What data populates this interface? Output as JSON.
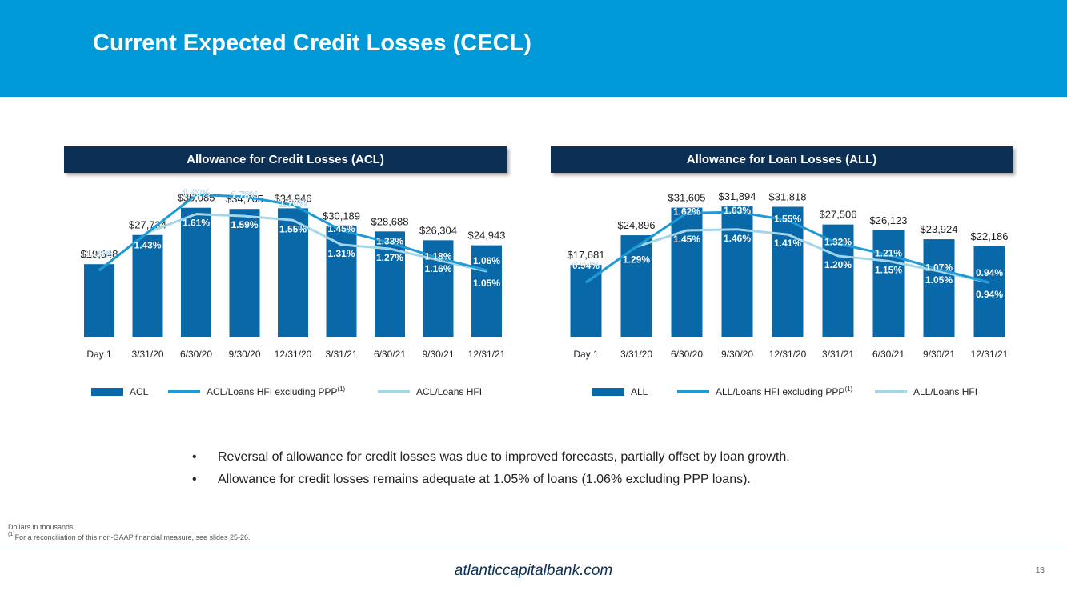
{
  "header": {
    "title": "Current Expected Credit Losses (CECL)"
  },
  "chart_data": [
    {
      "type": "bar",
      "title": "Allowance for Credit Losses (ACL)",
      "categories": [
        "Day 1",
        "3/31/20",
        "6/30/20",
        "9/30/20",
        "12/31/20",
        "3/31/21",
        "6/30/21",
        "9/30/21",
        "12/31/21"
      ],
      "bar_series": {
        "name": "ACL",
        "values": [
          19848,
          27734,
          35085,
          34765,
          34946,
          30189,
          28688,
          26304,
          24943
        ],
        "labels": [
          "$19,848",
          "$27,734",
          "$35,085",
          "$34,765",
          "$34,946",
          "$30,189",
          "$28,688",
          "$26,304",
          "$24,943"
        ]
      },
      "line_series": [
        {
          "name": "ACL/Loans HFI excluding PPP",
          "superscript": "(1)",
          "values": [
            1.06,
            1.43,
            1.8,
            1.78,
            1.7,
            1.45,
            1.33,
            1.18,
            1.06
          ],
          "labels": [
            "1.06%",
            "1.43%",
            "1.80%",
            "1.78%",
            "1.70%",
            "1.45%",
            "1.33%",
            "1.18%",
            "1.06%"
          ]
        },
        {
          "name": "ACL/Loans HFI",
          "superscript": "",
          "values": [
            1.06,
            1.43,
            1.61,
            1.59,
            1.55,
            1.31,
            1.27,
            1.16,
            1.05
          ],
          "labels": [
            "1.06%",
            "1.43%",
            "1.61%",
            "1.59%",
            "1.55%",
            "1.31%",
            "1.27%",
            "1.16%",
            "1.05%"
          ]
        }
      ],
      "ylim": [
        0,
        40000
      ],
      "colors": {
        "bar": "#0868a8",
        "line1": "#1e9ad6",
        "line2": "#a4d6ea"
      }
    },
    {
      "type": "bar",
      "title": "Allowance for Loan Losses (ALL)",
      "categories": [
        "Day 1",
        "3/31/20",
        "6/30/20",
        "9/30/20",
        "12/31/20",
        "3/31/21",
        "6/30/21",
        "9/30/21",
        "12/31/21"
      ],
      "bar_series": {
        "name": "ALL",
        "values": [
          17681,
          24896,
          31605,
          31894,
          31818,
          27506,
          26123,
          23924,
          22186
        ],
        "labels": [
          "$17,681",
          "$24,896",
          "$31,605",
          "$31,894",
          "$31,818",
          "$27,506",
          "$26,123",
          "$23,924",
          "$22,186"
        ]
      },
      "line_series": [
        {
          "name": "ALL/Loans HFI excluding PPP",
          "superscript": "(1)",
          "values": [
            0.94,
            1.29,
            1.62,
            1.63,
            1.55,
            1.32,
            1.21,
            1.07,
            0.94
          ],
          "labels": [
            "0.94%",
            "1.29%",
            "1.62%",
            "1.63%",
            "1.55%",
            "1.32%",
            "1.21%",
            "1.07%",
            "0.94%"
          ]
        },
        {
          "name": "ALL/Loans HFI",
          "superscript": "",
          "values": [
            0.94,
            1.29,
            1.45,
            1.46,
            1.41,
            1.2,
            1.15,
            1.05,
            0.94
          ],
          "labels": [
            "0.94%",
            "1.29%",
            "1.45%",
            "1.46%",
            "1.41%",
            "1.20%",
            "1.15%",
            "1.05%",
            "0.94%"
          ]
        }
      ],
      "ylim": [
        0,
        36000
      ],
      "colors": {
        "bar": "#0868a8",
        "line1": "#1e9ad6",
        "line2": "#a4d6ea"
      }
    }
  ],
  "bullets": [
    "Reversal of allowance for credit losses was due to improved forecasts, partially offset by loan growth.",
    "Allowance for credit losses remains adequate at 1.05% of loans (1.06% excluding PPP loans)."
  ],
  "footnotes": {
    "units": "Dollars in thousands",
    "marker": "(1)",
    "reconciliation": "For a reconciliation of this non-GAAP financial measure, see slides 25-26."
  },
  "footer": {
    "site": "atlanticcapitalbank.com",
    "page_number": "13"
  }
}
